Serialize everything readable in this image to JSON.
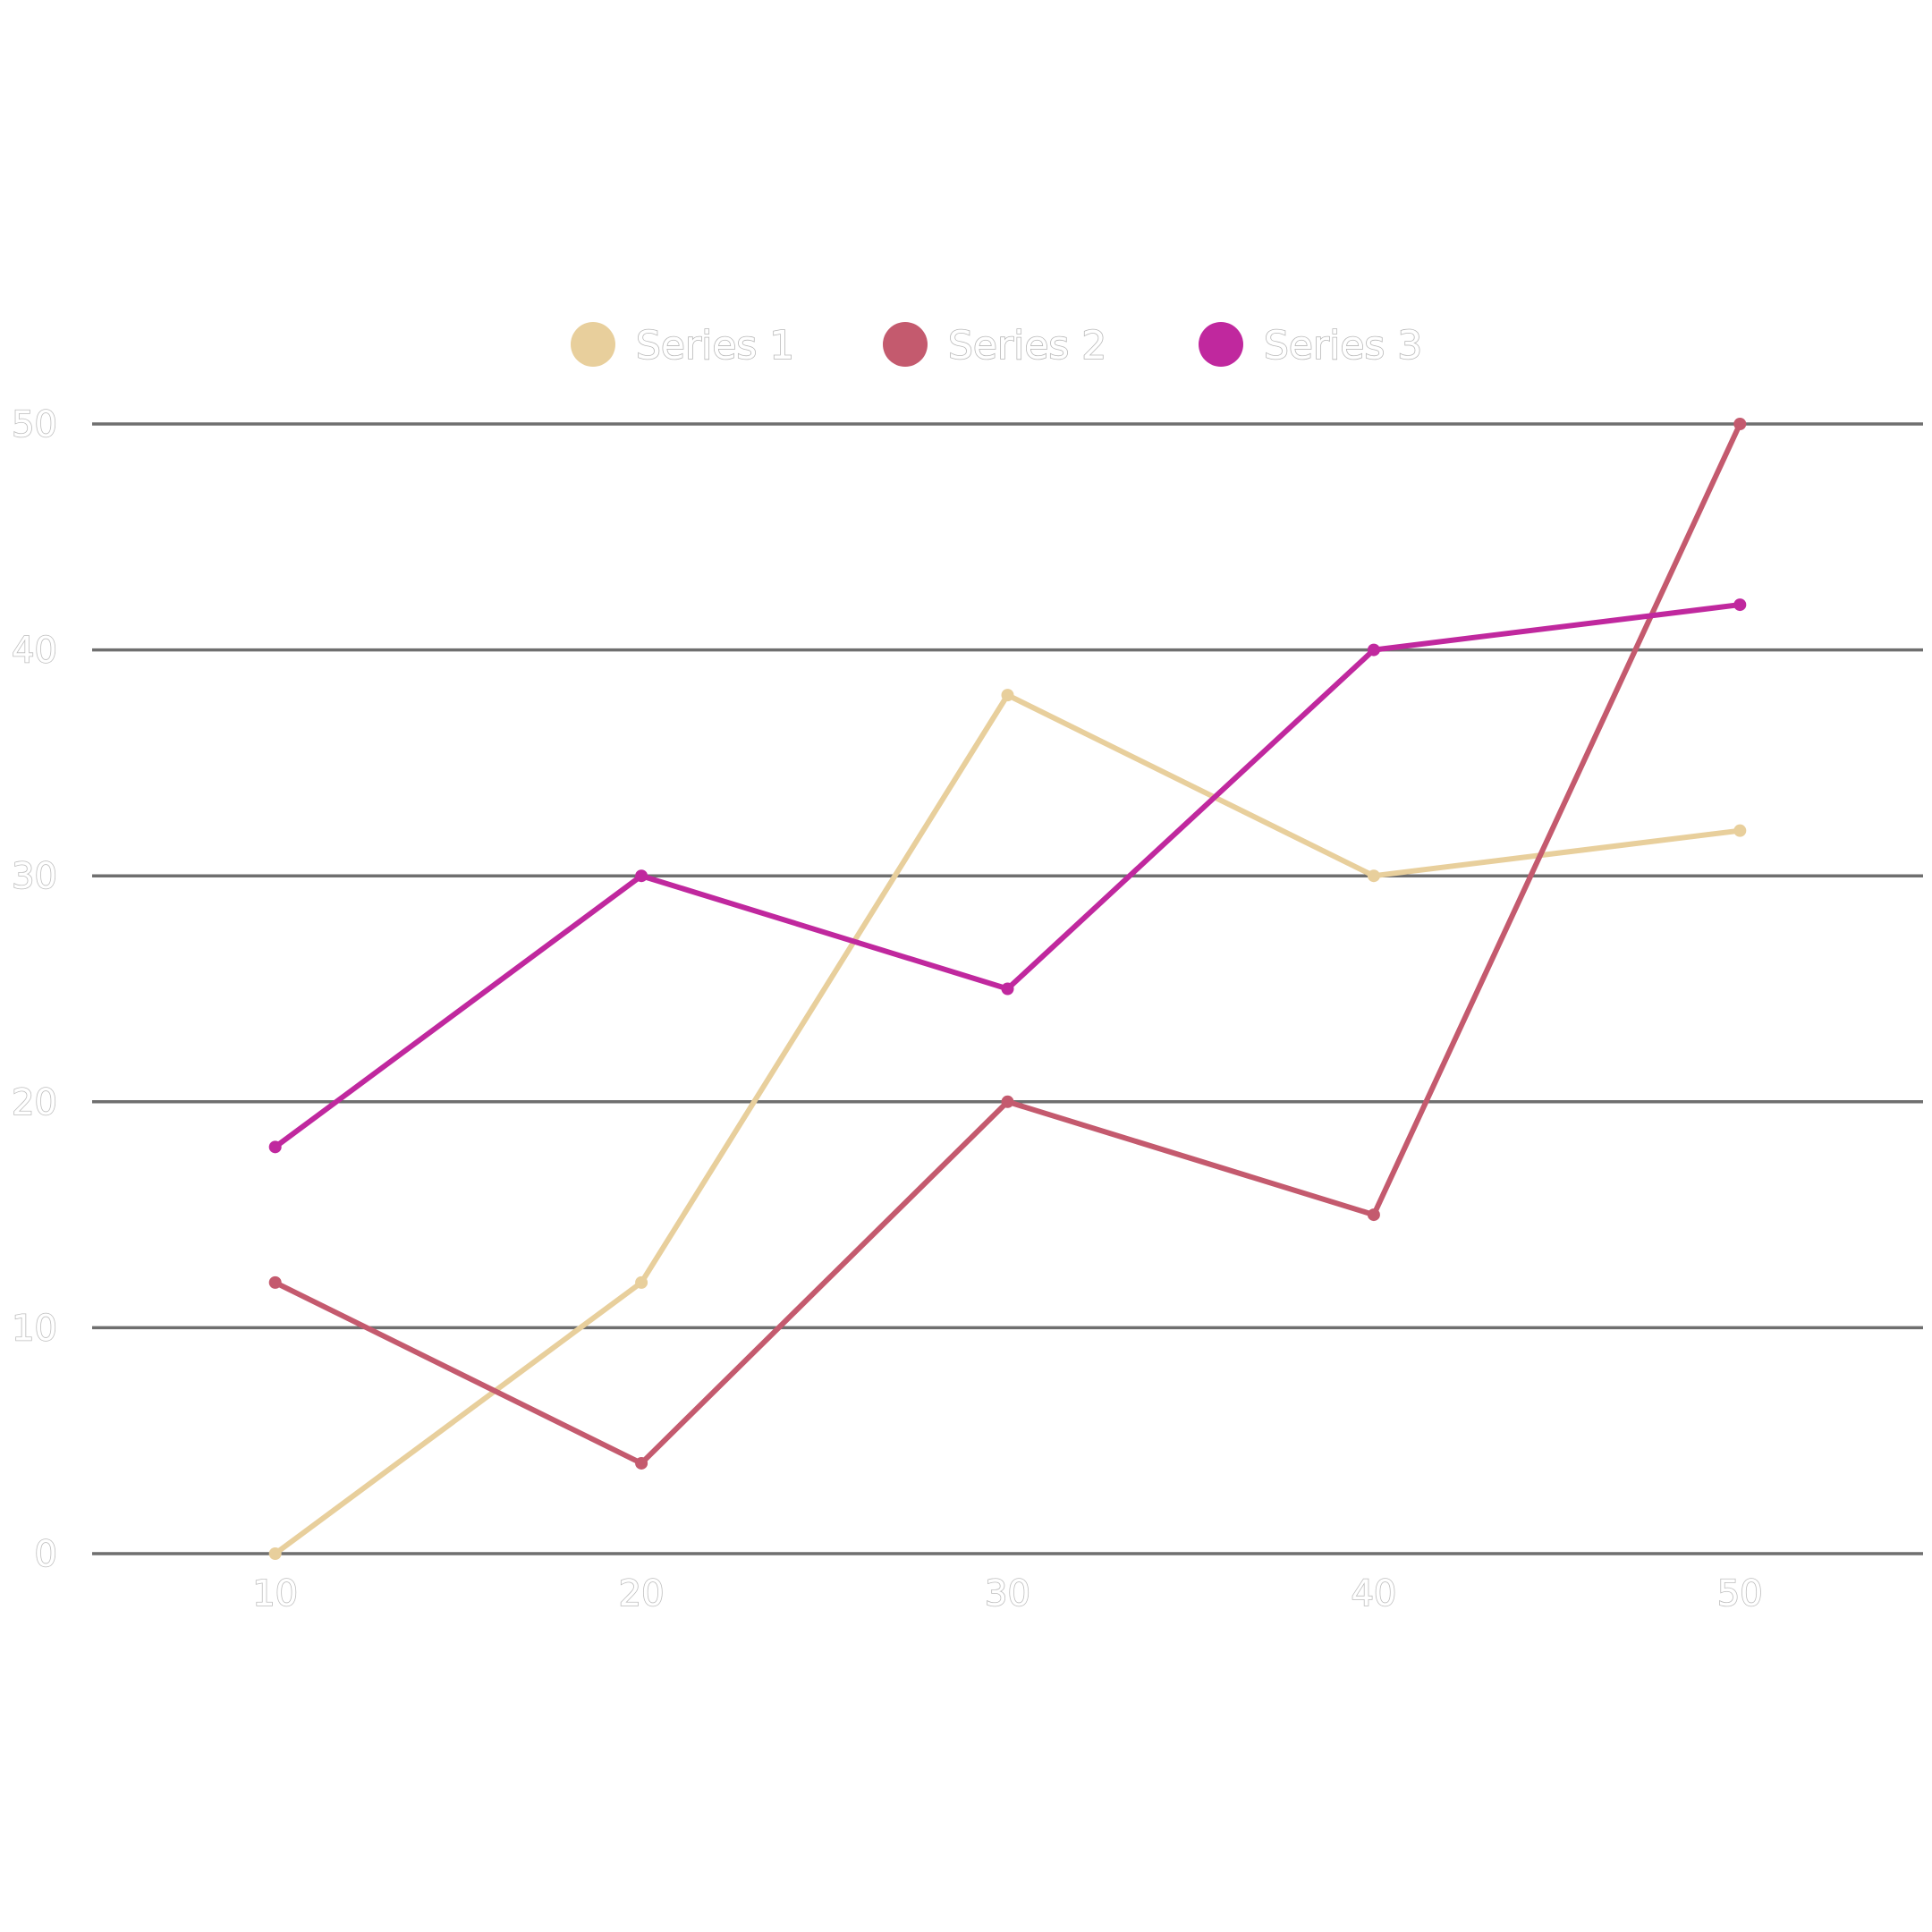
{
  "chart_data": {
    "type": "line",
    "x": [
      10,
      20,
      30,
      40,
      50
    ],
    "series": [
      {
        "name": "Series 1",
        "color": "#E8CF9C",
        "values": [
          0,
          12,
          38,
          30,
          32
        ]
      },
      {
        "name": "Series 2",
        "color": "#C45A6E",
        "values": [
          12,
          4,
          20,
          15,
          50
        ]
      },
      {
        "name": "Series 3",
        "color": "#C0289E",
        "values": [
          18,
          30,
          25,
          40,
          42
        ]
      }
    ],
    "xticks": [
      "10",
      "20",
      "30",
      "40",
      "50"
    ],
    "yticks": [
      "0",
      "10",
      "20",
      "30",
      "40",
      "50"
    ],
    "xlim": [
      5,
      55
    ],
    "ylim": [
      0,
      50
    ],
    "grid": "horizontal",
    "legend_position": "top-center",
    "title": "",
    "xlabel": "",
    "ylabel": ""
  }
}
